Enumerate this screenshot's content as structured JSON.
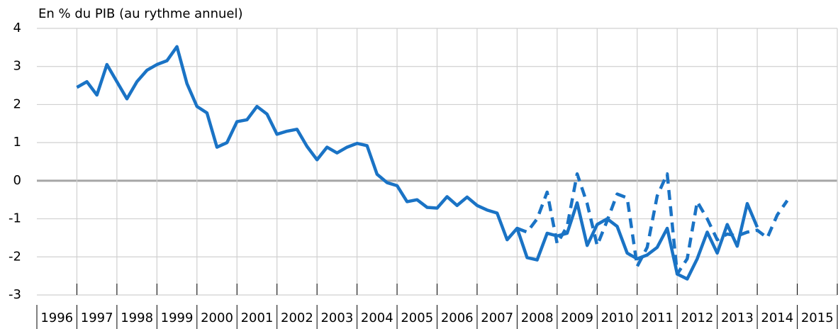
{
  "chart_data": {
    "type": "line",
    "axis_label": "En % du PIB (au rythme annuel)",
    "categories": [
      "1996",
      "1997",
      "1998",
      "1999",
      "2000",
      "2001",
      "2002",
      "2003",
      "2004",
      "2005",
      "2006",
      "2007",
      "2008",
      "2009",
      "2010",
      "2011",
      "2012",
      "2013",
      "2014",
      "2015"
    ],
    "xlim": [
      1996,
      2016
    ],
    "x": [
      1997,
      1997.25,
      1997.5,
      1997.75,
      1998,
      1998.25,
      1998.5,
      1998.75,
      1999,
      1999.25,
      1999.5,
      1999.75,
      2000,
      2000.25,
      2000.5,
      2000.75,
      2001,
      2001.25,
      2001.5,
      2001.75,
      2002,
      2002.25,
      2002.5,
      2002.75,
      2003,
      2003.25,
      2003.5,
      2003.75,
      2004,
      2004.25,
      2004.5,
      2004.75,
      2005,
      2005.25,
      2005.5,
      2005.75,
      2006,
      2006.25,
      2006.5,
      2006.75,
      2007,
      2007.25,
      2007.5,
      2007.75,
      2008,
      2008.25,
      2008.5,
      2008.75,
      2009,
      2009.25,
      2009.5,
      2009.75,
      2010,
      2010.25,
      2010.5,
      2010.75,
      2011,
      2011.25,
      2011.5,
      2011.75,
      2012,
      2012.25,
      2012.5,
      2012.75,
      2013,
      2013.25,
      2013.5,
      2013.75,
      2014,
      2014.25,
      2014.5,
      2014.75
    ],
    "series": [
      {
        "color": "#1a73c5",
        "dashed": false,
        "values": [
          2.45,
          2.6,
          2.25,
          3.05,
          2.6,
          2.15,
          2.6,
          2.9,
          3.05,
          3.15,
          3.52,
          2.55,
          1.95,
          1.78,
          0.88,
          1.0,
          1.55,
          1.6,
          1.95,
          1.75,
          1.22,
          1.3,
          1.35,
          0.9,
          0.55,
          0.88,
          0.73,
          0.88,
          0.98,
          0.92,
          0.17,
          -0.05,
          -0.13,
          -0.55,
          -0.5,
          -0.7,
          -0.72,
          -0.42,
          -0.65,
          -0.43,
          -0.65,
          -0.77,
          -0.85,
          -1.55,
          -1.25,
          -2.02,
          -2.08,
          -1.38,
          -1.45,
          -1.38,
          -0.58,
          -1.7,
          -1.15,
          -1.0,
          -1.2,
          -1.9,
          -2.05,
          -1.95,
          -1.75,
          -1.25,
          -2.45,
          -2.58,
          -2.05,
          -1.35,
          -1.9,
          -1.15,
          -1.72,
          -0.6,
          -1.22,
          null,
          null,
          null
        ]
      },
      {
        "color": "#1a73c5",
        "dashed": true,
        "values": [
          null,
          null,
          null,
          null,
          null,
          null,
          null,
          null,
          null,
          null,
          null,
          null,
          null,
          null,
          null,
          null,
          null,
          null,
          null,
          null,
          null,
          null,
          null,
          null,
          null,
          null,
          null,
          null,
          null,
          null,
          null,
          null,
          null,
          null,
          null,
          null,
          null,
          null,
          null,
          null,
          null,
          null,
          null,
          null,
          -1.25,
          -1.35,
          -1.0,
          -0.3,
          -1.65,
          -1.2,
          0.18,
          -0.6,
          -1.7,
          -1.05,
          -0.35,
          -0.45,
          -2.25,
          -1.75,
          -0.4,
          0.18,
          -2.45,
          -2.05,
          -0.55,
          -1.0,
          -1.55,
          -1.4,
          -1.45,
          -1.35,
          -1.3,
          -1.5,
          -0.9,
          -0.52
        ]
      }
    ],
    "ylim": [
      -3,
      4
    ],
    "yticks": [
      -3,
      -2,
      -1,
      0,
      1,
      2,
      3,
      4
    ],
    "grid": true
  }
}
